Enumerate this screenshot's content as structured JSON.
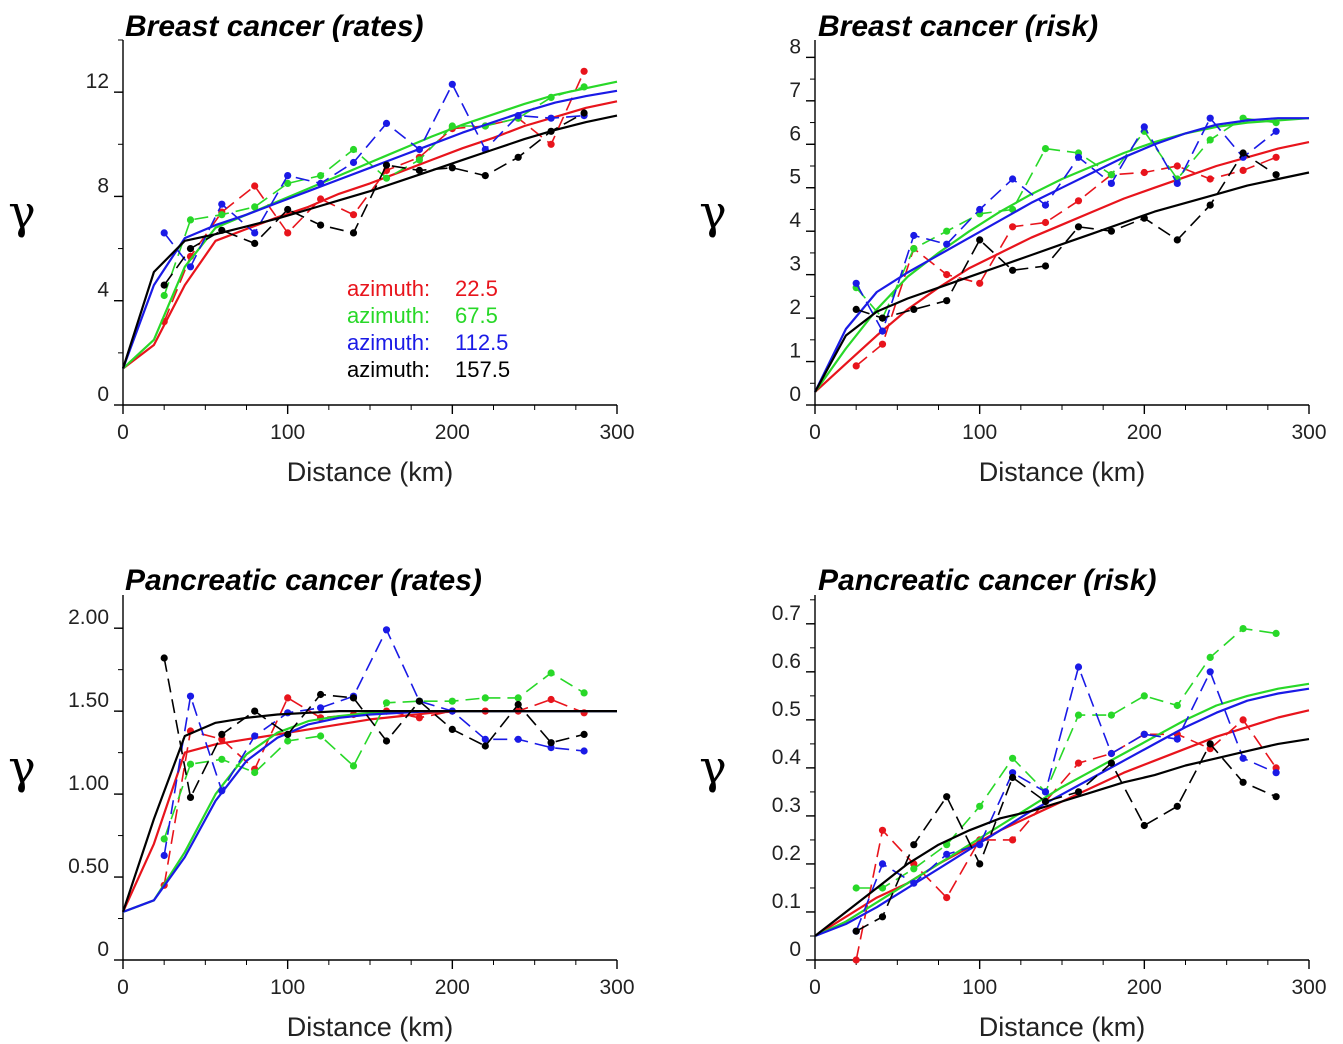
{
  "figure": {
    "ylabel_symbol": "γ"
  },
  "chart_data": [
    {
      "type": "line",
      "title": "Breast cancer (rates)",
      "xlabel": "Distance (km)",
      "ylabel": "γ",
      "xlim": [
        0,
        300
      ],
      "ylim": [
        0,
        14
      ],
      "xticks": [
        "0",
        "100",
        "200",
        "300"
      ],
      "yticks": [
        {
          "v": 0,
          "t": "0"
        },
        {
          "v": 4,
          "t": "4"
        },
        {
          "v": 8,
          "t": "8"
        },
        {
          "v": 12,
          "t": "12"
        }
      ],
      "legend": {
        "placement": "center",
        "entries": [
          {
            "label": "azimuth:",
            "value": "22.5",
            "color": "#e8141c"
          },
          {
            "label": "azimuth:",
            "value": "67.5",
            "color": "#28d828"
          },
          {
            "label": "azimuth:",
            "value": "112.5",
            "color": "#1a1ae6"
          },
          {
            "label": "azimuth:",
            "value": "157.5",
            "color": "#000000"
          }
        ]
      },
      "x": [
        25,
        41,
        60,
        80,
        100,
        120,
        140,
        160,
        180,
        200,
        220,
        240,
        260,
        280
      ],
      "series": [
        {
          "name": "22.5",
          "color": "#e8141c",
          "points": [
            3.2,
            5.7,
            7.4,
            8.4,
            6.6,
            7.9,
            7.3,
            9.0,
            9.5,
            10.6,
            10.7,
            11.0,
            10.0,
            12.8
          ],
          "fit": [
            1.4,
            2.3,
            4.6,
            6.3,
            6.75,
            7.2,
            7.6,
            8.1,
            8.5,
            8.95,
            9.4,
            9.85,
            10.25,
            10.7,
            11.05,
            11.4,
            11.65
          ]
        },
        {
          "name": "67.5",
          "color": "#28d828",
          "points": [
            4.2,
            7.1,
            7.3,
            7.6,
            8.5,
            8.8,
            9.8,
            8.7,
            9.4,
            10.7,
            10.7,
            11.0,
            11.8,
            12.2
          ],
          "fit": [
            1.4,
            2.5,
            5.3,
            6.8,
            7.3,
            7.8,
            8.3,
            8.8,
            9.3,
            9.8,
            10.3,
            10.75,
            11.15,
            11.55,
            11.9,
            12.15,
            12.4
          ]
        },
        {
          "name": "112.5",
          "color": "#1a1ae6",
          "points": [
            6.6,
            5.3,
            7.7,
            6.6,
            8.8,
            8.5,
            9.3,
            10.8,
            9.8,
            12.3,
            9.8,
            11.1,
            11.0,
            11.1
          ],
          "fit": [
            1.4,
            4.6,
            6.4,
            6.9,
            7.3,
            7.75,
            8.2,
            8.65,
            9.1,
            9.55,
            10.0,
            10.45,
            10.85,
            11.25,
            11.6,
            11.85,
            12.05
          ]
        },
        {
          "name": "157.5",
          "color": "#000000",
          "points": [
            4.6,
            6.0,
            6.7,
            6.2,
            7.5,
            6.9,
            6.6,
            9.2,
            9.0,
            9.1,
            8.8,
            9.5,
            10.5,
            11.2
          ],
          "fit": [
            1.4,
            5.1,
            6.3,
            6.55,
            6.85,
            7.15,
            7.5,
            7.85,
            8.2,
            8.6,
            9.0,
            9.4,
            9.8,
            10.2,
            10.55,
            10.85,
            11.1
          ]
        }
      ]
    },
    {
      "type": "line",
      "title": "Breast cancer (risk)",
      "xlabel": "Distance (km)",
      "ylabel": "γ",
      "xlim": [
        0,
        300
      ],
      "ylim": [
        0,
        8.4
      ],
      "xticks": [
        "0",
        "100",
        "200",
        "300"
      ],
      "yticks": [
        {
          "v": 0,
          "t": "0"
        },
        {
          "v": 1,
          "t": "1"
        },
        {
          "v": 2,
          "t": "2"
        },
        {
          "v": 3,
          "t": "3"
        },
        {
          "v": 4,
          "t": "4"
        },
        {
          "v": 5,
          "t": "5"
        },
        {
          "v": 6,
          "t": "6"
        },
        {
          "v": 7,
          "t": "7"
        },
        {
          "v": 8,
          "t": "8"
        }
      ],
      "x": [
        25,
        41,
        60,
        80,
        100,
        120,
        140,
        160,
        180,
        200,
        220,
        240,
        260,
        280
      ],
      "series": [
        {
          "name": "22.5",
          "color": "#e8141c",
          "points": [
            0.9,
            1.4,
            3.6,
            3.0,
            2.8,
            4.1,
            4.2,
            4.7,
            5.3,
            5.35,
            5.5,
            5.2,
            5.4,
            5.7
          ],
          "fit": [
            0.3,
            0.95,
            1.6,
            2.2,
            2.7,
            3.15,
            3.5,
            3.85,
            4.15,
            4.45,
            4.75,
            5.0,
            5.25,
            5.5,
            5.7,
            5.9,
            6.05
          ]
        },
        {
          "name": "67.5",
          "color": "#28d828",
          "points": [
            2.7,
            2.0,
            3.6,
            4.0,
            4.4,
            4.5,
            5.9,
            5.8,
            5.3,
            6.3,
            5.2,
            6.1,
            6.6,
            6.5
          ],
          "fit": [
            0.3,
            1.3,
            2.2,
            2.95,
            3.5,
            4.0,
            4.45,
            4.85,
            5.2,
            5.5,
            5.8,
            6.05,
            6.25,
            6.4,
            6.5,
            6.55,
            6.6
          ]
        },
        {
          "name": "112.5",
          "color": "#1a1ae6",
          "points": [
            2.8,
            1.7,
            3.9,
            3.7,
            4.5,
            5.2,
            4.6,
            5.7,
            5.1,
            6.4,
            5.1,
            6.6,
            5.7,
            6.3
          ],
          "fit": [
            0.3,
            1.75,
            2.6,
            3.05,
            3.45,
            3.85,
            4.25,
            4.65,
            5.0,
            5.35,
            5.7,
            6.0,
            6.25,
            6.45,
            6.55,
            6.6,
            6.6
          ]
        },
        {
          "name": "157.5",
          "color": "#000000",
          "points": [
            2.2,
            2.0,
            2.2,
            2.4,
            3.8,
            3.1,
            3.2,
            4.1,
            4.0,
            4.3,
            3.8,
            4.6,
            5.8,
            5.3
          ],
          "fit": [
            0.3,
            1.6,
            2.15,
            2.45,
            2.7,
            2.95,
            3.2,
            3.45,
            3.7,
            3.95,
            4.2,
            4.45,
            4.65,
            4.85,
            5.05,
            5.2,
            5.35
          ]
        }
      ]
    },
    {
      "type": "line",
      "title": "Pancreatic cancer (rates)",
      "xlabel": "Distance (km)",
      "ylabel": "γ",
      "xlim": [
        0,
        300
      ],
      "ylim": [
        0,
        2.2
      ],
      "xticks": [
        "0",
        "100",
        "200",
        "300"
      ],
      "yticks": [
        {
          "v": 0,
          "t": "0"
        },
        {
          "v": 0.5,
          "t": "0.50"
        },
        {
          "v": 1.0,
          "t": "1.00"
        },
        {
          "v": 1.5,
          "t": "1.50"
        },
        {
          "v": 2.0,
          "t": "2.00"
        }
      ],
      "x": [
        25,
        41,
        60,
        80,
        100,
        120,
        140,
        160,
        180,
        200,
        220,
        240,
        260,
        280
      ],
      "series": [
        {
          "name": "22.5",
          "color": "#e8141c",
          "points": [
            0.45,
            1.38,
            1.33,
            1.15,
            1.58,
            1.46,
            1.48,
            1.5,
            1.46,
            1.5,
            1.5,
            1.5,
            1.57,
            1.49
          ],
          "fit": [
            0.29,
            0.7,
            1.25,
            1.3,
            1.33,
            1.36,
            1.39,
            1.42,
            1.45,
            1.47,
            1.49,
            1.5,
            1.5,
            1.5,
            1.5,
            1.5,
            1.5
          ]
        },
        {
          "name": "67.5",
          "color": "#28d828",
          "points": [
            0.73,
            1.18,
            1.21,
            1.13,
            1.32,
            1.35,
            1.17,
            1.55,
            1.56,
            1.56,
            1.58,
            1.58,
            1.73,
            1.61
          ],
          "fit": [
            0.29,
            0.36,
            0.65,
            1.0,
            1.24,
            1.37,
            1.44,
            1.47,
            1.49,
            1.5,
            1.5,
            1.5,
            1.5,
            1.5,
            1.5,
            1.5,
            1.5
          ]
        },
        {
          "name": "112.5",
          "color": "#1a1ae6",
          "points": [
            0.63,
            1.59,
            1.02,
            1.35,
            1.49,
            1.52,
            1.59,
            1.99,
            1.56,
            1.5,
            1.33,
            1.33,
            1.28,
            1.26
          ],
          "fit": [
            0.29,
            0.36,
            0.62,
            0.96,
            1.2,
            1.34,
            1.42,
            1.46,
            1.48,
            1.49,
            1.5,
            1.5,
            1.5,
            1.5,
            1.5,
            1.5,
            1.5
          ]
        },
        {
          "name": "157.5",
          "color": "#000000",
          "points": [
            1.82,
            0.98,
            1.36,
            1.5,
            1.36,
            1.6,
            1.58,
            1.32,
            1.56,
            1.39,
            1.29,
            1.54,
            1.31,
            1.36
          ],
          "fit": [
            0.29,
            0.85,
            1.35,
            1.43,
            1.46,
            1.48,
            1.49,
            1.5,
            1.5,
            1.5,
            1.5,
            1.5,
            1.5,
            1.5,
            1.5,
            1.5,
            1.5
          ]
        }
      ]
    },
    {
      "type": "line",
      "title": "Pancreatic cancer (risk)",
      "xlabel": "Distance (km)",
      "ylabel": "γ",
      "xlim": [
        0,
        300
      ],
      "ylim": [
        0,
        0.76
      ],
      "xticks": [
        "0",
        "100",
        "200",
        "300"
      ],
      "yticks": [
        {
          "v": 0,
          "t": "0"
        },
        {
          "v": 0.1,
          "t": "0.1"
        },
        {
          "v": 0.2,
          "t": "0.2"
        },
        {
          "v": 0.3,
          "t": "0.3"
        },
        {
          "v": 0.4,
          "t": "0.4"
        },
        {
          "v": 0.5,
          "t": "0.5"
        },
        {
          "v": 0.6,
          "t": "0.6"
        },
        {
          "v": 0.7,
          "t": "0.7"
        }
      ],
      "x": [
        25,
        41,
        60,
        80,
        100,
        120,
        140,
        160,
        180,
        200,
        220,
        240,
        260,
        280
      ],
      "series": [
        {
          "name": "22.5",
          "color": "#e8141c",
          "points": [
            0.0,
            0.27,
            0.2,
            0.13,
            0.25,
            0.25,
            0.33,
            0.41,
            0.43,
            0.47,
            0.47,
            0.44,
            0.5,
            0.4
          ],
          "fit": [
            0.05,
            0.09,
            0.13,
            0.16,
            0.2,
            0.235,
            0.27,
            0.3,
            0.33,
            0.36,
            0.39,
            0.415,
            0.44,
            0.465,
            0.485,
            0.505,
            0.52
          ]
        },
        {
          "name": "67.5",
          "color": "#28d828",
          "points": [
            0.15,
            0.15,
            0.19,
            0.24,
            0.32,
            0.42,
            0.35,
            0.51,
            0.51,
            0.55,
            0.53,
            0.63,
            0.69,
            0.68
          ],
          "fit": [
            0.05,
            0.08,
            0.12,
            0.16,
            0.2,
            0.24,
            0.28,
            0.32,
            0.36,
            0.395,
            0.43,
            0.465,
            0.5,
            0.53,
            0.55,
            0.565,
            0.575
          ]
        },
        {
          "name": "112.5",
          "color": "#1a1ae6",
          "points": [
            0.06,
            0.2,
            0.16,
            0.22,
            0.24,
            0.39,
            0.35,
            0.61,
            0.43,
            0.47,
            0.46,
            0.6,
            0.42,
            0.39
          ],
          "fit": [
            0.05,
            0.075,
            0.11,
            0.15,
            0.19,
            0.23,
            0.27,
            0.31,
            0.345,
            0.38,
            0.415,
            0.45,
            0.485,
            0.515,
            0.54,
            0.555,
            0.565
          ]
        },
        {
          "name": "157.5",
          "color": "#000000",
          "points": [
            0.06,
            0.09,
            0.24,
            0.34,
            0.2,
            0.38,
            0.33,
            0.35,
            0.41,
            0.28,
            0.32,
            0.45,
            0.37,
            0.34
          ],
          "fit": [
            0.05,
            0.1,
            0.15,
            0.2,
            0.24,
            0.27,
            0.295,
            0.31,
            0.33,
            0.35,
            0.37,
            0.385,
            0.405,
            0.42,
            0.435,
            0.45,
            0.46
          ]
        }
      ]
    }
  ]
}
